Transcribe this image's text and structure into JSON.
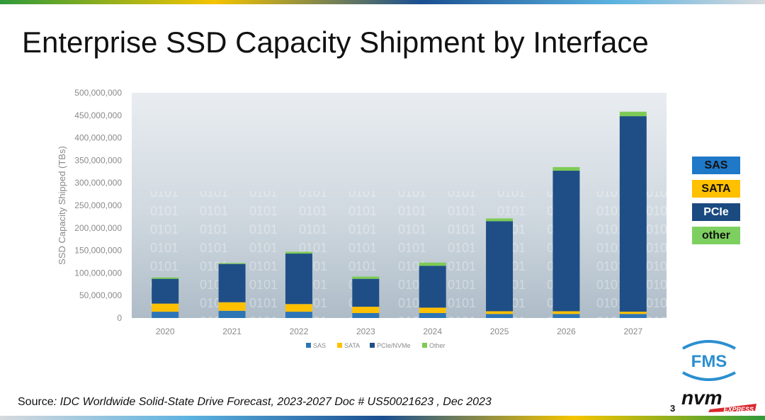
{
  "slide": {
    "title": "Enterprise SSD Capacity Shipment by Interface",
    "source_label": "Source",
    "source_text": ": IDC Worldwide Solid-State Drive Forecast, 2023-2027 Doc # US50021623 , Dec 2023",
    "page_number": "3"
  },
  "side_legend": [
    {
      "label": "SAS",
      "color": "#1f78c8",
      "text_color": "#111111"
    },
    {
      "label": "SATA",
      "color": "#ffc000",
      "text_color": "#111111"
    },
    {
      "label": "PCIe",
      "color": "#1a4a80",
      "text_color": "#ffffff"
    },
    {
      "label": "other",
      "color": "#7dd060",
      "text_color": "#111111"
    }
  ],
  "logos": {
    "fms": "FMS",
    "nvm": "nvm",
    "express": "EXPRESS"
  },
  "chart_data": {
    "type": "bar",
    "stacked": true,
    "title": "",
    "xlabel": "",
    "ylabel": "SSD Capacity Shipped (TBs)",
    "ylim": [
      0,
      500000000
    ],
    "yticks": [
      0,
      50000000,
      100000000,
      150000000,
      200000000,
      250000000,
      300000000,
      350000000,
      400000000,
      450000000,
      500000000
    ],
    "ytick_labels": [
      "0",
      "50,000,000",
      "100,000,000",
      "150,000,000",
      "200,000,000",
      "250,000,000",
      "300,000,000",
      "350,000,000",
      "400,000,000",
      "450,000,000",
      "500,000,000"
    ],
    "categories": [
      "2020",
      "2021",
      "2022",
      "2023",
      "2024",
      "2025",
      "2026",
      "2027"
    ],
    "legend_position": "bottom",
    "series": [
      {
        "name": "SAS",
        "color": "#2e75b6",
        "values": [
          14000000,
          16000000,
          14000000,
          11000000,
          11000000,
          9000000,
          9000000,
          9000000
        ]
      },
      {
        "name": "SATA",
        "color": "#ffc000",
        "values": [
          18000000,
          19000000,
          17000000,
          14000000,
          12000000,
          6000000,
          6000000,
          5000000
        ]
      },
      {
        "name": "PCIe/NVMe",
        "color": "#1f4e86",
        "values": [
          55000000,
          85000000,
          112000000,
          62000000,
          93000000,
          200000000,
          312000000,
          434000000
        ]
      },
      {
        "name": "Other",
        "color": "#7dcb55",
        "values": [
          3000000,
          2000000,
          4000000,
          5000000,
          7000000,
          6000000,
          8000000,
          10000000
        ]
      }
    ]
  }
}
